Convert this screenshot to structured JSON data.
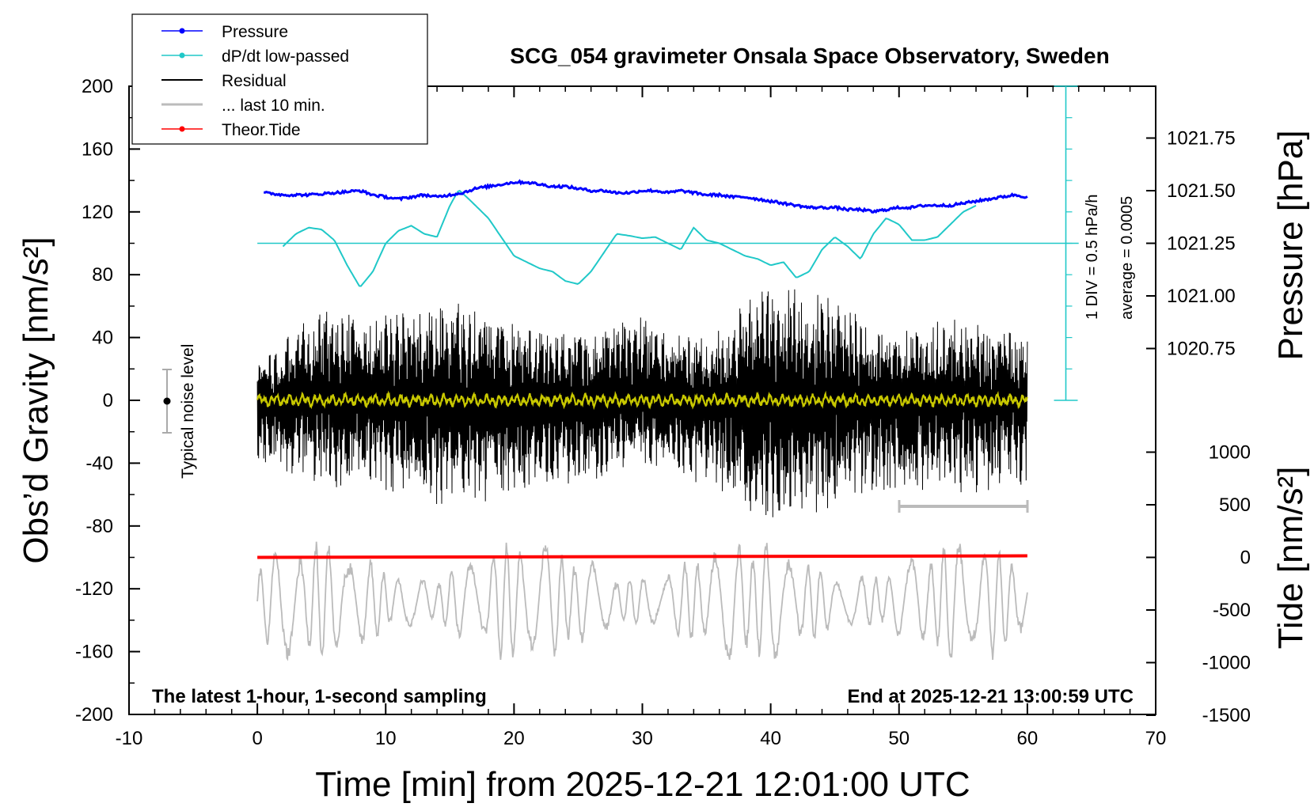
{
  "title": "SCG_054 gravimeter Onsala Space Observatory, Sweden",
  "subtitle_left": "The latest 1-hour, 1-second sampling",
  "subtitle_right": "End at 2025-12-21 13:00:59 UTC",
  "colors": {
    "pressure": "#0000ff",
    "dpdt": "#20c8c8",
    "residual": "#000000",
    "last10": "#bbbbbb",
    "tide": "#ff0000",
    "filtered": "#c8c800"
  },
  "chart_data": {
    "type": "line",
    "title": "SCG_054 gravimeter Onsala Space Observatory, Sweden",
    "xlabel": "Time [min] from 2025-12-21 12:01:00 UTC",
    "ylabel_left": "Obs’d Gravity [nm/s²]",
    "ylabel_right_top": "Pressure [hPa]",
    "ylabel_right_bottom": "Tide [nm/s²]",
    "xlim": [
      -10,
      70
    ],
    "ylim": [
      -200,
      200
    ],
    "xticks": [
      "-10",
      "0",
      "10",
      "20",
      "30",
      "40",
      "50",
      "60",
      "70"
    ],
    "yticks": [
      "200",
      "160",
      "120",
      "80",
      "40",
      "0",
      "-40",
      "-80",
      "-120",
      "-160",
      "-200"
    ],
    "pressure_ticks": [
      "1021.75",
      "1021.50",
      "1021.25",
      "1021.00",
      "1020.75"
    ],
    "tide_ticks": [
      "1000",
      "500",
      "0",
      "-500",
      "-1000",
      "-1500"
    ],
    "legend": [
      "Pressure",
      "dP/dt low-passed",
      "Residual",
      "... last 10 min.",
      "Theor.Tide"
    ],
    "legend_position": "top-left",
    "dpdt_note": "1 DIV = 0.5 hPa/h",
    "dpdt_average": "average = 0.0005",
    "noise_label": "Typical noise level",
    "series": {
      "pressure_hPa": {
        "x": [
          0.5,
          2,
          4,
          6,
          8,
          9,
          10,
          11,
          12,
          13,
          14,
          15,
          16,
          17,
          18,
          19,
          20,
          21,
          22,
          23,
          24,
          25,
          26,
          27,
          28,
          29,
          30,
          31,
          32,
          33,
          34,
          35,
          36,
          37,
          38,
          39,
          40,
          41,
          42,
          43,
          44,
          45,
          46,
          47,
          48,
          49,
          50,
          51,
          52,
          53,
          54,
          55,
          56,
          57,
          58,
          59,
          60
        ],
        "y": [
          1021.49,
          1021.48,
          1021.48,
          1021.49,
          1021.5,
          1021.48,
          1021.47,
          1021.46,
          1021.47,
          1021.48,
          1021.47,
          1021.48,
          1021.49,
          1021.51,
          1021.52,
          1021.53,
          1021.54,
          1021.54,
          1021.53,
          1021.52,
          1021.52,
          1021.51,
          1021.5,
          1021.5,
          1021.49,
          1021.49,
          1021.5,
          1021.5,
          1021.49,
          1021.5,
          1021.49,
          1021.48,
          1021.48,
          1021.47,
          1021.47,
          1021.46,
          1021.45,
          1021.44,
          1021.43,
          1021.42,
          1021.42,
          1021.42,
          1021.41,
          1021.41,
          1021.4,
          1021.41,
          1021.42,
          1021.42,
          1021.43,
          1021.43,
          1021.43,
          1021.44,
          1021.45,
          1021.46,
          1021.47,
          1021.48,
          1021.47
        ]
      },
      "dpdt_lowpassed": {
        "x": [
          2,
          3,
          4,
          5,
          6,
          7,
          8,
          9,
          10,
          11,
          12,
          13,
          14,
          15,
          15.7,
          16.5,
          17,
          18,
          19,
          20,
          21,
          22,
          23,
          24,
          25,
          26,
          27,
          28,
          29,
          30,
          31,
          32,
          33,
          34,
          35,
          36,
          37,
          38,
          39,
          40,
          41,
          42,
          43,
          44,
          45,
          46,
          47,
          48,
          49,
          50,
          51,
          52,
          53,
          54,
          55,
          56
        ],
        "y": [
          -0.05,
          0.15,
          0.25,
          0.22,
          0.05,
          -0.35,
          -0.7,
          -0.45,
          0.0,
          0.2,
          0.28,
          0.15,
          0.1,
          0.6,
          0.85,
          0.7,
          0.6,
          0.4,
          0.1,
          -0.2,
          -0.3,
          -0.4,
          -0.45,
          -0.6,
          -0.65,
          -0.45,
          -0.15,
          0.15,
          0.12,
          0.08,
          0.1,
          0.0,
          -0.1,
          0.25,
          0.05,
          0.0,
          -0.1,
          -0.2,
          -0.25,
          -0.35,
          -0.3,
          -0.55,
          -0.45,
          -0.1,
          0.1,
          -0.05,
          -0.25,
          0.15,
          0.4,
          0.3,
          0.05,
          0.05,
          0.1,
          0.3,
          0.5,
          0.6
        ]
      },
      "residual_envelope": {
        "x": [
          0,
          5,
          10,
          15,
          20,
          25,
          30,
          35,
          40,
          45,
          50,
          55,
          60
        ],
        "ymax": [
          25,
          60,
          55,
          65,
          50,
          45,
          55,
          40,
          80,
          65,
          45,
          55,
          40
        ],
        "ymin": [
          -40,
          -55,
          -60,
          -70,
          -60,
          -55,
          -40,
          -55,
          -80,
          -70,
          -60,
          -60,
          -55
        ]
      },
      "last_10_min_bar": {
        "x": [
          50,
          60
        ],
        "y": -66
      },
      "theoretical_tide": {
        "x": [
          0,
          60
        ],
        "y": [
          -100,
          -99
        ]
      }
    }
  }
}
